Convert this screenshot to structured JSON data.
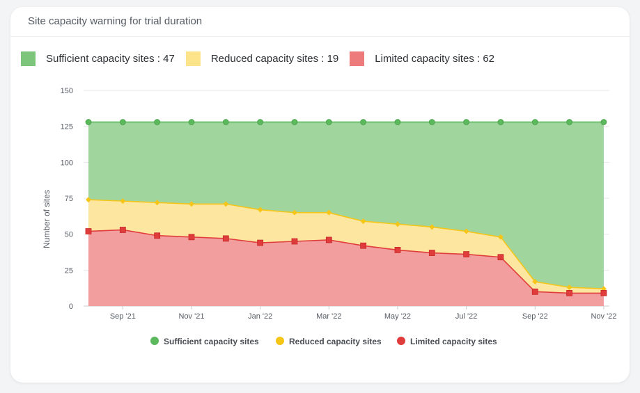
{
  "card": {
    "title": "Site capacity warning for trial duration"
  },
  "summary": [
    {
      "label": "Sufficient capacity sites : 47",
      "color": "#7cc57a"
    },
    {
      "label": "Reduced capacity sites : 19",
      "color": "#fde38a"
    },
    {
      "label": "Limited capacity sites : 62",
      "color": "#ee7b7b"
    }
  ],
  "chart_data": {
    "type": "area",
    "stacked": false,
    "ylabel": "Number of sites",
    "ylim": [
      0,
      150
    ],
    "yticks": [
      0,
      25,
      50,
      75,
      100,
      125,
      150
    ],
    "x_labels": [
      "Sep '21",
      "Nov '21",
      "Jan '22",
      "Mar '22",
      "May '22",
      "Jul '22",
      "Sep '22",
      "Nov '22"
    ],
    "x_label_positions": [
      1,
      3,
      5,
      7,
      9,
      11,
      13,
      15
    ],
    "grid": true,
    "legend": "bottom",
    "series": [
      {
        "name": "Sufficient capacity sites",
        "color": "#5cb85c",
        "fill": "#a0d59e",
        "marker": "circle",
        "values": [
          128,
          128,
          128,
          128,
          128,
          128,
          128,
          128,
          128,
          128,
          128,
          128,
          128,
          128,
          128,
          128
        ]
      },
      {
        "name": "Reduced capacity sites",
        "color": "#f5c518",
        "fill": "#fde6a0",
        "marker": "diamond",
        "values": [
          74,
          73,
          72,
          71,
          71,
          67,
          65,
          65,
          59,
          57,
          55,
          52,
          48,
          17,
          13,
          12
        ]
      },
      {
        "name": "Limited capacity sites",
        "color": "#e03c3c",
        "fill": "#f29e9e",
        "marker": "square",
        "values": [
          52,
          53,
          49,
          48,
          47,
          44,
          45,
          46,
          42,
          39,
          37,
          36,
          34,
          10,
          9,
          9
        ]
      }
    ]
  }
}
